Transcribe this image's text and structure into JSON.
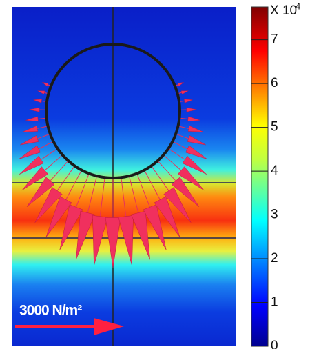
{
  "chart_data": {
    "type": "field",
    "colorbar_label": "X 10",
    "colorbar_exponent": "4",
    "ylim": [
      0,
      7.75
    ],
    "yticks": [
      0,
      1,
      2,
      3,
      4,
      5,
      6,
      7
    ],
    "annotation": "3000 N/m²"
  }
}
